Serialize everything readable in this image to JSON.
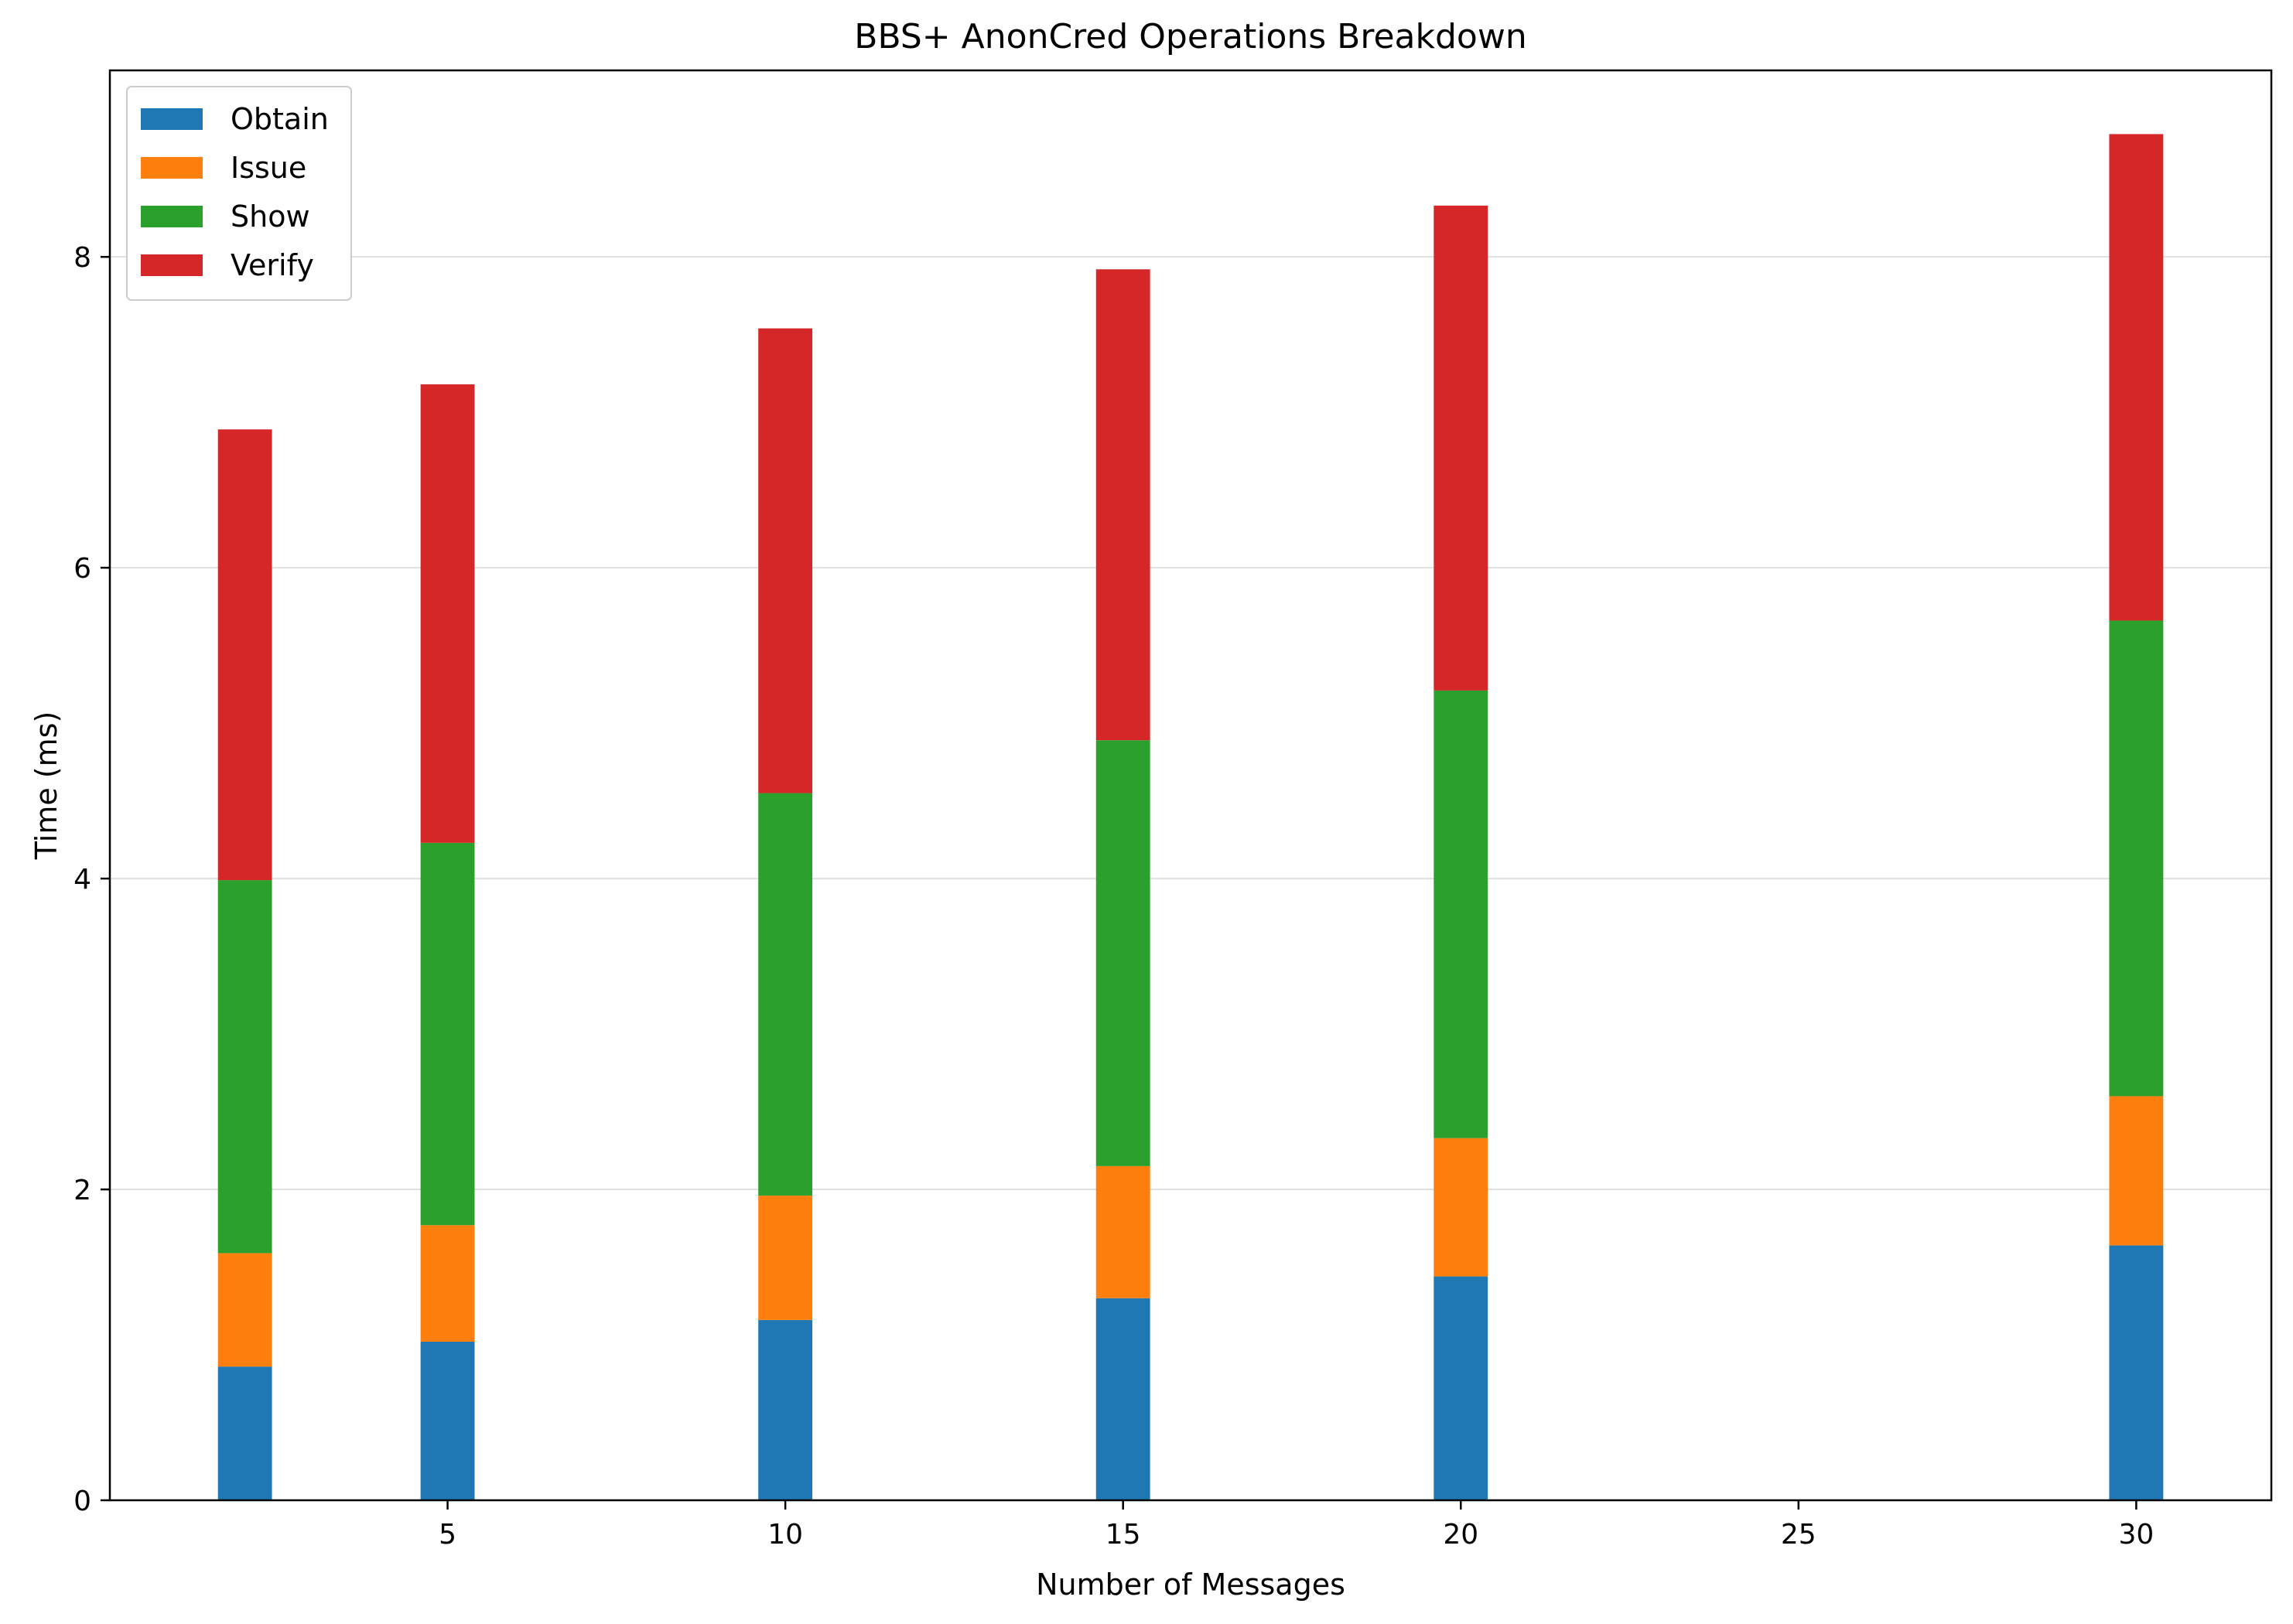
{
  "chart_data": {
    "type": "bar",
    "stacked": true,
    "title": "BBS+ AnonCred Operations Breakdown",
    "xlabel": "Number of Messages",
    "ylabel": "Time (ms)",
    "x": [
      2,
      5,
      10,
      15,
      20,
      30
    ],
    "xlim": [
      0,
      32
    ],
    "ylim": [
      0,
      9.2
    ],
    "x_ticks": [
      5,
      10,
      15,
      20,
      25,
      30
    ],
    "y_ticks": [
      0,
      2,
      4,
      6,
      8
    ],
    "bar_width": 0.8,
    "grid": "y",
    "legend_position": "top-left",
    "series": [
      {
        "name": "Obtain",
        "color": "#1f77b4",
        "values": [
          0.86,
          1.02,
          1.16,
          1.3,
          1.44,
          1.64
        ]
      },
      {
        "name": "Issue",
        "color": "#ff7f0e",
        "values": [
          0.73,
          0.75,
          0.8,
          0.85,
          0.89,
          0.96
        ]
      },
      {
        "name": "Show",
        "color": "#2ca02c",
        "values": [
          2.4,
          2.46,
          2.59,
          2.74,
          2.88,
          3.06
        ]
      },
      {
        "name": "Verify",
        "color": "#d62728",
        "values": [
          2.9,
          2.95,
          2.99,
          3.03,
          3.12,
          3.13
        ]
      }
    ]
  }
}
